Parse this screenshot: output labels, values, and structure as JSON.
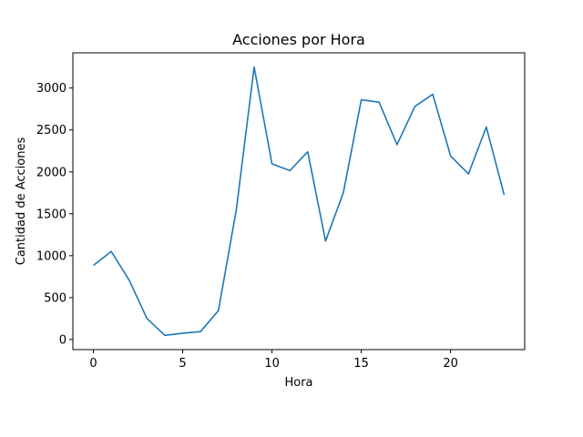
{
  "chart_data": {
    "type": "line",
    "title": "Acciones por Hora",
    "xlabel": "Hora",
    "ylabel": "Cantidad de Acciones",
    "xlim": [
      -1.15,
      24.15
    ],
    "ylim": [
      -120,
      3420
    ],
    "xticks": [
      0,
      5,
      10,
      15,
      20
    ],
    "yticks": [
      0,
      500,
      1000,
      1500,
      2000,
      2500,
      3000
    ],
    "grid": false,
    "series": [
      {
        "color": "#1f77b4",
        "x": [
          0,
          1,
          2,
          3,
          4,
          5,
          6,
          7,
          8,
          9,
          10,
          11,
          12,
          13,
          14,
          15,
          16,
          17,
          18,
          19,
          20,
          21,
          22,
          23
        ],
        "y": [
          885,
          1050,
          710,
          250,
          50,
          75,
          95,
          345,
          1545,
          3250,
          2095,
          2015,
          2240,
          1175,
          1755,
          2860,
          2830,
          2325,
          2780,
          2925,
          2190,
          1975,
          2535,
          1725
        ]
      }
    ]
  }
}
